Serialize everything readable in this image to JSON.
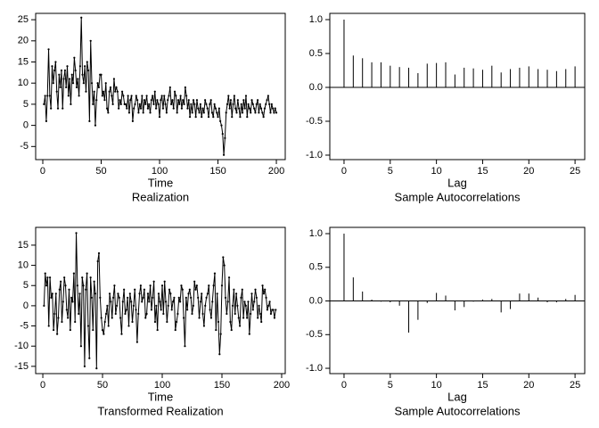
{
  "chart_data": [
    {
      "type": "line",
      "xlabel": "Time",
      "caption": "Realization",
      "color": "#000000",
      "x": [
        1,
        2,
        3,
        4,
        5,
        6,
        7,
        8,
        9,
        10,
        11,
        12,
        13,
        14,
        15,
        16,
        17,
        18,
        19,
        20,
        21,
        22,
        23,
        24,
        25,
        26,
        27,
        28,
        29,
        30,
        31,
        32,
        33,
        34,
        35,
        36,
        37,
        38,
        39,
        40,
        41,
        42,
        43,
        44,
        45,
        46,
        47,
        48,
        49,
        50,
        51,
        52,
        53,
        54,
        55,
        56,
        57,
        58,
        59,
        60,
        61,
        62,
        63,
        64,
        65,
        66,
        67,
        68,
        69,
        70,
        71,
        72,
        73,
        74,
        75,
        76,
        77,
        78,
        79,
        80,
        81,
        82,
        83,
        84,
        85,
        86,
        87,
        88,
        89,
        90,
        91,
        92,
        93,
        94,
        95,
        96,
        97,
        98,
        99,
        100,
        101,
        102,
        103,
        104,
        105,
        106,
        107,
        108,
        109,
        110,
        111,
        112,
        113,
        114,
        115,
        116,
        117,
        118,
        119,
        120,
        121,
        122,
        123,
        124,
        125,
        126,
        127,
        128,
        129,
        130,
        131,
        132,
        133,
        134,
        135,
        136,
        137,
        138,
        139,
        140,
        141,
        142,
        143,
        144,
        145,
        146,
        147,
        148,
        149,
        150,
        151,
        152,
        153,
        154,
        155,
        156,
        157,
        158,
        159,
        160,
        161,
        162,
        163,
        164,
        165,
        166,
        167,
        168,
        169,
        170,
        171,
        172,
        173,
        174,
        175,
        176,
        177,
        178,
        179,
        180,
        181,
        182,
        183,
        184,
        185,
        186,
        187,
        188,
        189,
        190,
        191,
        192,
        193,
        194,
        195,
        196,
        197,
        198,
        199,
        200
      ],
      "values": [
        5,
        7,
        1,
        7,
        18,
        7,
        4,
        14,
        10,
        13,
        15,
        8,
        4,
        12,
        9,
        13,
        4,
        11,
        13,
        9,
        14,
        7,
        11,
        5,
        12,
        10,
        16,
        13,
        9,
        11,
        7,
        14,
        25.5,
        12,
        10,
        14,
        8,
        15,
        13,
        1,
        20,
        10,
        5,
        8,
        0,
        6,
        10,
        9,
        12,
        12,
        7,
        8,
        6,
        10,
        4,
        3,
        8,
        9,
        7,
        5,
        11,
        8,
        9,
        8,
        4,
        6,
        5,
        8,
        7,
        5,
        5,
        4,
        7,
        3,
        6,
        7,
        1,
        4,
        5,
        7,
        6,
        3,
        5,
        4,
        7,
        3,
        6,
        5,
        7,
        4,
        5,
        3,
        6,
        7,
        5,
        8,
        4,
        6,
        5,
        2,
        6,
        7,
        4,
        7,
        5,
        3,
        6,
        7,
        9,
        5,
        6,
        4,
        8,
        7,
        3,
        6,
        5,
        7,
        4,
        6,
        5,
        9,
        7,
        4,
        6,
        2,
        5,
        3,
        6,
        5,
        2,
        6,
        4,
        3,
        5,
        2,
        4,
        3,
        6,
        5,
        4,
        2,
        5,
        6,
        3,
        2,
        5,
        4,
        3,
        2,
        4,
        1,
        0,
        -2,
        -7,
        -3,
        3,
        5,
        7,
        4,
        6,
        2,
        5,
        7,
        4,
        3,
        6,
        4,
        2,
        5,
        3,
        6,
        4,
        7,
        2,
        5,
        4,
        3,
        6,
        5,
        4,
        3,
        5,
        6,
        3,
        5,
        4,
        3,
        2,
        4,
        5,
        6,
        7,
        5,
        3,
        5,
        4,
        3,
        4,
        3
      ],
      "xlim": [
        -6.1,
        207.6
      ],
      "ylim": [
        -8.1,
        26.5
      ],
      "xticks": [
        0,
        50,
        100,
        150,
        200
      ],
      "yticks": [
        -5,
        0,
        5,
        10,
        15,
        20,
        25
      ]
    },
    {
      "type": "stem",
      "xlabel": "Lag",
      "caption": "Sample Autocorrelations",
      "color": "#000000",
      "hline": 0,
      "x": [
        0,
        1,
        2,
        3,
        4,
        5,
        6,
        7,
        8,
        9,
        10,
        11,
        12,
        13,
        14,
        15,
        16,
        17,
        18,
        19,
        20,
        21,
        22,
        23,
        24,
        25
      ],
      "values": [
        1.0,
        0.47,
        0.43,
        0.37,
        0.37,
        0.32,
        0.3,
        0.29,
        0.21,
        0.35,
        0.36,
        0.37,
        0.19,
        0.29,
        0.28,
        0.26,
        0.32,
        0.22,
        0.27,
        0.29,
        0.31,
        0.27,
        0.26,
        0.24,
        0.27,
        0.31
      ],
      "xlim": [
        -1.54,
        26.05
      ],
      "ylim": [
        -1.066,
        1.092
      ],
      "xticks": [
        0,
        5,
        10,
        15,
        20,
        25
      ],
      "yticks": [
        {
          "value": -1,
          "label": "-1.0"
        },
        -0.5,
        {
          "value": 0,
          "label": "0.0"
        },
        0.5,
        {
          "value": 1,
          "label": "1.0"
        }
      ]
    },
    {
      "type": "line",
      "xlabel": "Time",
      "caption": "Transformed Realization",
      "color": "#000000",
      "x": [
        1,
        2,
        3,
        4,
        5,
        6,
        7,
        8,
        9,
        10,
        11,
        12,
        13,
        14,
        15,
        16,
        17,
        18,
        19,
        20,
        21,
        22,
        23,
        24,
        25,
        26,
        27,
        28,
        29,
        30,
        31,
        32,
        33,
        34,
        35,
        36,
        37,
        38,
        39,
        40,
        41,
        42,
        43,
        44,
        45,
        46,
        47,
        48,
        49,
        50,
        51,
        52,
        53,
        54,
        55,
        56,
        57,
        58,
        59,
        60,
        61,
        62,
        63,
        64,
        65,
        66,
        67,
        68,
        69,
        70,
        71,
        72,
        73,
        74,
        75,
        76,
        77,
        78,
        79,
        80,
        81,
        82,
        83,
        84,
        85,
        86,
        87,
        88,
        89,
        90,
        91,
        92,
        93,
        94,
        95,
        96,
        97,
        98,
        99,
        100,
        101,
        102,
        103,
        104,
        105,
        106,
        107,
        108,
        109,
        110,
        111,
        112,
        113,
        114,
        115,
        116,
        117,
        118,
        119,
        120,
        121,
        122,
        123,
        124,
        125,
        126,
        127,
        128,
        129,
        130,
        131,
        132,
        133,
        134,
        135,
        136,
        137,
        138,
        139,
        140,
        141,
        142,
        143,
        144,
        145,
        146,
        147,
        148,
        149,
        150,
        151,
        152,
        153,
        154,
        155,
        156,
        157,
        158,
        159,
        160,
        161,
        162,
        163,
        164,
        165,
        166,
        167,
        168,
        169,
        170,
        171,
        172,
        173,
        174,
        175,
        176,
        177,
        178,
        179,
        180,
        181,
        182,
        183,
        184,
        185,
        186,
        187,
        188,
        189,
        190,
        191,
        192,
        193,
        194,
        195
      ],
      "values": [
        0,
        8,
        5,
        7,
        -5,
        7,
        2,
        3,
        -6,
        -2,
        3,
        -7,
        -3,
        4,
        6,
        -4,
        1,
        7,
        5,
        -1,
        -3,
        4,
        -6,
        2,
        1,
        8,
        -4,
        18,
        5,
        -2,
        3,
        -10,
        7,
        5,
        -15,
        4,
        8,
        -5,
        -13,
        7,
        2,
        -6,
        6,
        3,
        -15.5,
        11,
        13,
        2,
        -3,
        -6,
        -7,
        -4,
        -2,
        0,
        -5,
        3,
        1,
        -3,
        2,
        5,
        -2,
        0,
        3,
        2,
        -3,
        -7,
        1,
        4,
        -2,
        -1,
        2,
        -5,
        3,
        1,
        -4,
        0,
        4,
        -1,
        -9,
        -2,
        3,
        5,
        1,
        2,
        4,
        -3,
        -2,
        3,
        1,
        5,
        -1,
        2,
        6,
        -4,
        0,
        -6,
        3,
        1,
        -1,
        5,
        -2,
        6,
        1,
        -4,
        0,
        4,
        3,
        -1,
        1,
        2,
        -6,
        -4,
        -2,
        2,
        1,
        5,
        4,
        -3,
        -10,
        2,
        -1,
        3,
        4,
        2,
        -2,
        0,
        6,
        4,
        5,
        2,
        -3,
        1,
        3,
        -2,
        -5,
        0,
        2,
        3,
        5,
        -1,
        -3,
        1,
        5,
        8,
        -6,
        3,
        -4,
        -12,
        -7,
        5,
        12,
        10,
        2,
        -2,
        1,
        7,
        -4,
        -6,
        0,
        4,
        -2,
        3,
        0,
        -3,
        -5,
        2,
        4,
        -3,
        1,
        0,
        -3,
        1,
        -7,
        -2,
        3,
        -1,
        1,
        4,
        2,
        -3,
        0,
        -2,
        -4,
        5,
        3,
        4,
        2,
        -1,
        0,
        1,
        -2,
        -1,
        -1,
        -3,
        -1
      ],
      "xlim": [
        -6,
        203
      ],
      "ylim": [
        -16.8,
        19.4
      ],
      "xticks": [
        0,
        50,
        100,
        150,
        200
      ],
      "yticks": [
        -15,
        -10,
        -5,
        0,
        5,
        10,
        15
      ]
    },
    {
      "type": "stem",
      "xlabel": "Lag",
      "caption": "Sample Autocorrelations",
      "color": "#000000",
      "hline": 0,
      "x": [
        0,
        1,
        2,
        3,
        4,
        5,
        6,
        7,
        8,
        9,
        10,
        11,
        12,
        13,
        14,
        15,
        16,
        17,
        18,
        19,
        20,
        21,
        22,
        23,
        24,
        25
      ],
      "values": [
        1.0,
        0.35,
        0.14,
        0.02,
        -0.01,
        -0.02,
        -0.07,
        -0.47,
        -0.28,
        -0.03,
        0.12,
        0.08,
        -0.14,
        -0.09,
        -0.01,
        0.02,
        0.03,
        -0.17,
        -0.12,
        0.11,
        0.11,
        0.05,
        -0.02,
        -0.02,
        0.03,
        0.09
      ],
      "xlim": [
        -1.54,
        26.05
      ],
      "ylim": [
        -1.079,
        1.093
      ],
      "xticks": [
        0,
        5,
        10,
        15,
        20,
        25
      ],
      "yticks": [
        {
          "value": -1,
          "label": "-1.0"
        },
        -0.5,
        {
          "value": 0,
          "label": "0.0"
        },
        0.5,
        {
          "value": 1,
          "label": "1.0"
        }
      ]
    }
  ]
}
